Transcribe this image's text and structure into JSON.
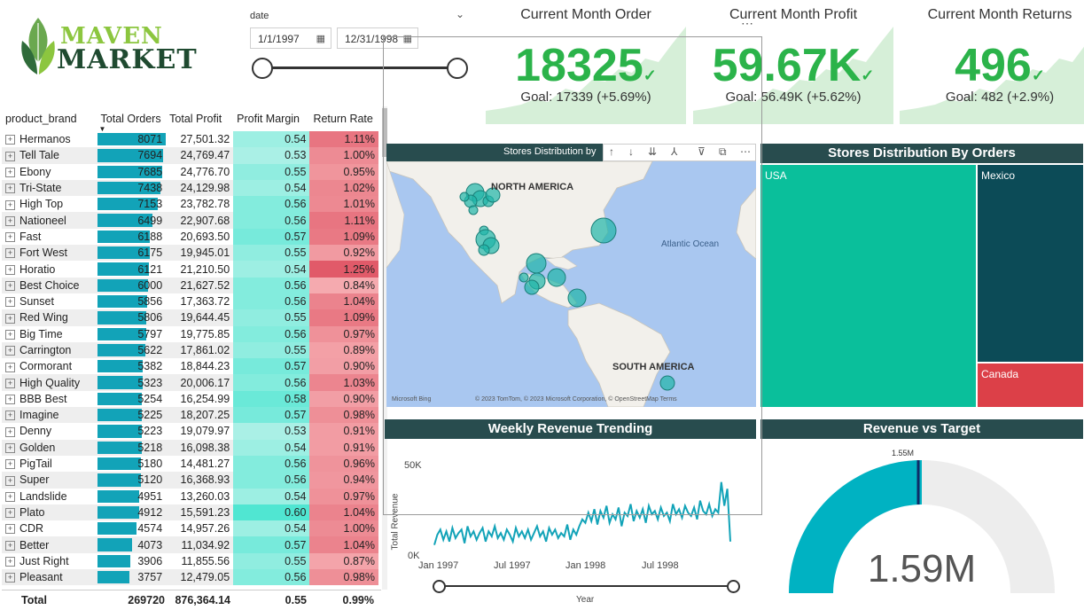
{
  "logo": {
    "line1": "MAVEN",
    "line2": "MARKET"
  },
  "date_slicer": {
    "label": "date",
    "start": "1/1/1997",
    "end": "12/31/1998"
  },
  "kpis": [
    {
      "title": "Current Month Order",
      "value": "18325",
      "goal": "Goal: 17339 (+5.69%)"
    },
    {
      "title": "Current Month Profit",
      "value": "59.67K",
      "goal": "Goal: 56.49K (+5.62%)"
    },
    {
      "title": "Current Month Returns",
      "value": "496",
      "goal": "Goal: 482 (+2.9%)"
    }
  ],
  "table": {
    "headers": [
      "product_brand",
      "Total Orders",
      "Total Profit",
      "Profit Margin",
      "Return Rate"
    ],
    "max_orders": 8071,
    "rows": [
      {
        "brand": "Hermanos",
        "orders": 8071,
        "profit": "27,501.32",
        "margin": "0.54",
        "rr": "1.11%"
      },
      {
        "brand": "Tell Tale",
        "orders": 7694,
        "profit": "24,769.47",
        "margin": "0.53",
        "rr": "1.00%"
      },
      {
        "brand": "Ebony",
        "orders": 7685,
        "profit": "24,776.70",
        "margin": "0.55",
        "rr": "0.95%"
      },
      {
        "brand": "Tri-State",
        "orders": 7438,
        "profit": "24,129.98",
        "margin": "0.54",
        "rr": "1.02%"
      },
      {
        "brand": "High Top",
        "orders": 7153,
        "profit": "23,782.78",
        "margin": "0.56",
        "rr": "1.01%"
      },
      {
        "brand": "Nationeel",
        "orders": 6499,
        "profit": "22,907.68",
        "margin": "0.56",
        "rr": "1.11%"
      },
      {
        "brand": "Fast",
        "orders": 6188,
        "profit": "20,693.50",
        "margin": "0.57",
        "rr": "1.09%"
      },
      {
        "brand": "Fort West",
        "orders": 6175,
        "profit": "19,945.01",
        "margin": "0.55",
        "rr": "0.92%"
      },
      {
        "brand": "Horatio",
        "orders": 6121,
        "profit": "21,210.50",
        "margin": "0.54",
        "rr": "1.25%"
      },
      {
        "brand": "Best Choice",
        "orders": 6000,
        "profit": "21,627.52",
        "margin": "0.56",
        "rr": "0.84%"
      },
      {
        "brand": "Sunset",
        "orders": 5856,
        "profit": "17,363.72",
        "margin": "0.56",
        "rr": "1.04%"
      },
      {
        "brand": "Red Wing",
        "orders": 5806,
        "profit": "19,644.45",
        "margin": "0.55",
        "rr": "1.09%"
      },
      {
        "brand": "Big Time",
        "orders": 5797,
        "profit": "19,775.85",
        "margin": "0.56",
        "rr": "0.97%"
      },
      {
        "brand": "Carrington",
        "orders": 5622,
        "profit": "17,861.02",
        "margin": "0.55",
        "rr": "0.89%"
      },
      {
        "brand": "Cormorant",
        "orders": 5382,
        "profit": "18,844.23",
        "margin": "0.57",
        "rr": "0.90%"
      },
      {
        "brand": "High Quality",
        "orders": 5323,
        "profit": "20,006.17",
        "margin": "0.56",
        "rr": "1.03%"
      },
      {
        "brand": "BBB Best",
        "orders": 5254,
        "profit": "16,254.99",
        "margin": "0.58",
        "rr": "0.90%"
      },
      {
        "brand": "Imagine",
        "orders": 5225,
        "profit": "18,207.25",
        "margin": "0.57",
        "rr": "0.98%"
      },
      {
        "brand": "Denny",
        "orders": 5223,
        "profit": "19,079.97",
        "margin": "0.53",
        "rr": "0.91%"
      },
      {
        "brand": "Golden",
        "orders": 5218,
        "profit": "16,098.38",
        "margin": "0.54",
        "rr": "0.91%"
      },
      {
        "brand": "PigTail",
        "orders": 5180,
        "profit": "14,481.27",
        "margin": "0.56",
        "rr": "0.96%"
      },
      {
        "brand": "Super",
        "orders": 5120,
        "profit": "16,368.93",
        "margin": "0.56",
        "rr": "0.94%"
      },
      {
        "brand": "Landslide",
        "orders": 4951,
        "profit": "13,260.03",
        "margin": "0.54",
        "rr": "0.97%"
      },
      {
        "brand": "Plato",
        "orders": 4912,
        "profit": "15,591.23",
        "margin": "0.60",
        "rr": "1.04%"
      },
      {
        "brand": "CDR",
        "orders": 4574,
        "profit": "14,957.26",
        "margin": "0.54",
        "rr": "1.00%"
      },
      {
        "brand": "Better",
        "orders": 4073,
        "profit": "11,034.92",
        "margin": "0.57",
        "rr": "1.04%"
      },
      {
        "brand": "Just Right",
        "orders": 3906,
        "profit": "11,855.56",
        "margin": "0.55",
        "rr": "0.87%"
      },
      {
        "brand": "Pleasant",
        "orders": 3757,
        "profit": "12,479.05",
        "margin": "0.56",
        "rr": "0.98%"
      }
    ],
    "total": {
      "label": "Total",
      "orders": "269720",
      "profit": "876,364.14",
      "margin": "0.55",
      "rr": "0.99%"
    }
  },
  "map": {
    "title": "Stores Distribution by",
    "label_na": "NORTH AMERICA",
    "label_sa": "SOUTH AMERICA",
    "label_ocean": "Atlantic Ocean",
    "attribution": "© 2023 TomTom, © 2023 Microsoft Corporation, © OpenStreetMap  Terms",
    "bing": "Microsoft Bing"
  },
  "treemap": {
    "title": "Stores Distribution By Orders",
    "items": [
      {
        "label": "USA",
        "color": "#0abf9b"
      },
      {
        "label": "Mexico",
        "color": "#0c4b57"
      },
      {
        "label": "Canada",
        "color": "#dc4048"
      }
    ]
  },
  "weekly": {
    "title": "Weekly Revenue Trending",
    "ylabel": "Total Revenue",
    "xlabel": "Year",
    "yticks": [
      "50K",
      "0K"
    ],
    "xticks": [
      "Jan 1997",
      "Jul 1997",
      "Jan 1998",
      "Jul 1998"
    ]
  },
  "gauge": {
    "title": "Revenue vs Target",
    "value": "1.59M",
    "target_label": "1.55M"
  },
  "chart_data": {
    "type": "line",
    "title": "Weekly Revenue Trending",
    "xlabel": "Year",
    "ylabel": "Total Revenue",
    "ylim": [
      0,
      60000
    ],
    "x_range": [
      "Jan 1997",
      "Dec 1998"
    ],
    "series": [
      {
        "values": [
          7000,
          13000,
          16000,
          10000,
          15000,
          9000,
          17000,
          11000,
          14000,
          16000,
          8000,
          18000,
          12000,
          15000,
          10000,
          14000,
          17000,
          9000,
          15000,
          12000,
          18000,
          11000,
          14000,
          10000,
          16000,
          13000,
          9000,
          17000,
          12000,
          15000,
          11000,
          16000,
          10000,
          14000,
          18000,
          12000,
          15000,
          9000,
          17000,
          13000,
          16000,
          11000,
          14000,
          12000,
          19000,
          10000,
          16000,
          13000,
          18000,
          22000,
          20000,
          26000,
          21000,
          28000,
          19000,
          27000,
          23000,
          30000,
          20000,
          25000,
          22000,
          29000,
          18000,
          26000,
          24000,
          31000,
          21000,
          27000,
          23000,
          28000,
          20000,
          30000,
          25000,
          27000,
          22000,
          29000,
          24000,
          26000,
          21000,
          31000,
          25000,
          28000,
          23000,
          30000,
          26000,
          24000,
          29000,
          22000,
          33000,
          27000,
          25000,
          31000,
          24000,
          28000,
          26000,
          44000,
          30000,
          40000,
          9000
        ]
      }
    ]
  },
  "colors": {
    "accent": "#12a3b8",
    "header": "#284c4e",
    "kpi": "#2bb34a",
    "margin": "#5fe3d0",
    "return": "#e05a62"
  }
}
